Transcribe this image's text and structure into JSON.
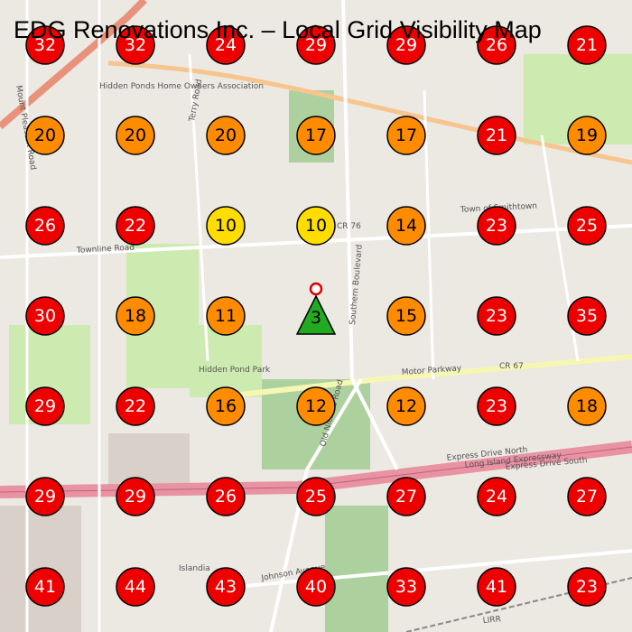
{
  "header": {
    "title": "EDG Renovations Inc. – Local Grid Visibility Map"
  },
  "map_labels": [
    "Mount Pleasant Road",
    "Hidden Ponds Home Owners Association",
    "Terry Road",
    "Townline Road",
    "CR 76",
    "Town of Smithtown",
    "Southern Boulevard",
    "Old Nichols Road",
    "Hidden Pond Park",
    "Motor Parkway",
    "CR 67",
    "Express Drive North",
    "Long Island Expressway",
    "Express Drive South",
    "Islandia",
    "Johnson Avenue",
    "LIRR"
  ],
  "grid": {
    "rows": [
      [
        {
          "rank": 32,
          "color": "#ee0000"
        },
        {
          "rank": 32,
          "color": "#ee0000"
        },
        {
          "rank": 24,
          "color": "#ee0000"
        },
        {
          "rank": 29,
          "color": "#ee0000"
        },
        {
          "rank": 29,
          "color": "#ee0000"
        },
        {
          "rank": 26,
          "color": "#ee0000"
        },
        {
          "rank": 21,
          "color": "#ee0000"
        }
      ],
      [
        {
          "rank": 20,
          "color": "#ff8c00"
        },
        {
          "rank": 20,
          "color": "#ff8c00"
        },
        {
          "rank": 20,
          "color": "#ff8c00"
        },
        {
          "rank": 17,
          "color": "#ff8c00"
        },
        {
          "rank": 17,
          "color": "#ff8c00"
        },
        {
          "rank": 21,
          "color": "#ee0000"
        },
        {
          "rank": 19,
          "color": "#ff8c00"
        }
      ],
      [
        {
          "rank": 26,
          "color": "#ee0000"
        },
        {
          "rank": 22,
          "color": "#ee0000"
        },
        {
          "rank": 10,
          "color": "#ffdd00"
        },
        {
          "rank": 10,
          "color": "#ffdd00"
        },
        {
          "rank": 14,
          "color": "#ff8c00"
        },
        {
          "rank": 23,
          "color": "#ee0000"
        },
        {
          "rank": 25,
          "color": "#ee0000"
        }
      ],
      [
        {
          "rank": 30,
          "color": "#ee0000"
        },
        {
          "rank": 18,
          "color": "#ff8c00"
        },
        {
          "rank": 11,
          "color": "#ff8c00"
        },
        {
          "rank": 3,
          "color": "#22aa22",
          "shape": "triangle"
        },
        {
          "rank": 15,
          "color": "#ff8c00"
        },
        {
          "rank": 23,
          "color": "#ee0000"
        },
        {
          "rank": 35,
          "color": "#ee0000"
        }
      ],
      [
        {
          "rank": 29,
          "color": "#ee0000"
        },
        {
          "rank": 22,
          "color": "#ee0000"
        },
        {
          "rank": 16,
          "color": "#ff8c00"
        },
        {
          "rank": 12,
          "color": "#ff8c00"
        },
        {
          "rank": 12,
          "color": "#ff8c00"
        },
        {
          "rank": 23,
          "color": "#ee0000"
        },
        {
          "rank": 18,
          "color": "#ff8c00"
        }
      ],
      [
        {
          "rank": 29,
          "color": "#ee0000"
        },
        {
          "rank": 29,
          "color": "#ee0000"
        },
        {
          "rank": 26,
          "color": "#ee0000"
        },
        {
          "rank": 25,
          "color": "#ee0000"
        },
        {
          "rank": 27,
          "color": "#ee0000"
        },
        {
          "rank": 24,
          "color": "#ee0000"
        },
        {
          "rank": 27,
          "color": "#ee0000"
        }
      ],
      [
        {
          "rank": 41,
          "color": "#ee0000"
        },
        {
          "rank": 44,
          "color": "#ee0000"
        },
        {
          "rank": 43,
          "color": "#ee0000"
        },
        {
          "rank": 40,
          "color": "#ee0000"
        },
        {
          "rank": 33,
          "color": "#ee0000"
        },
        {
          "rank": 41,
          "color": "#ee0000"
        },
        {
          "rank": 23,
          "color": "#ee0000"
        }
      ]
    ]
  }
}
